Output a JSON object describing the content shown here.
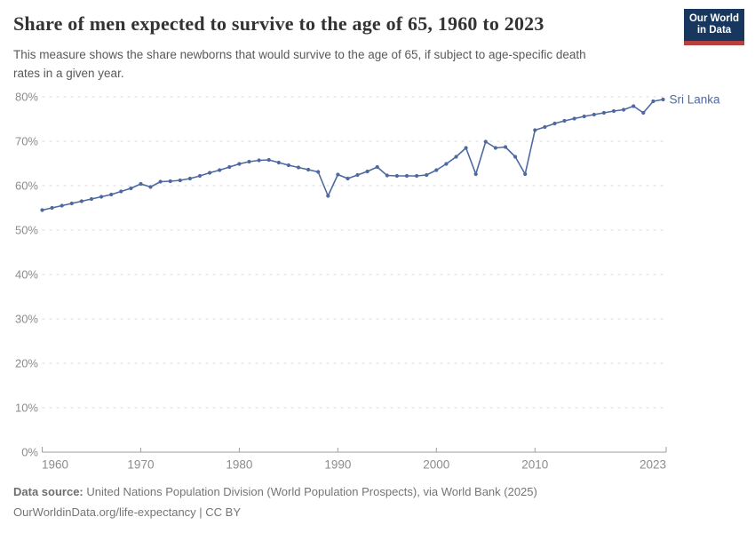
{
  "header": {
    "title": "Share of men expected to survive to the age of 65, 1960 to 2023",
    "logo": {
      "line1": "Our World",
      "line2": "in Data"
    }
  },
  "subtitle": {
    "line1": "This measure shows the share newborns that would survive to the age of 65, if subject to age-specific death",
    "line2": "rates in a given year."
  },
  "colors": {
    "series_blue": "#4d69a0",
    "grid": "#d9d9d9",
    "axis": "#9e9e9e",
    "axis_text": "#8c8c8c",
    "title_text": "#333333",
    "logo_navy": "#18375f",
    "logo_red": "#b5413f"
  },
  "chart_data": {
    "type": "line",
    "title": "Share of men expected to survive to the age of 65, 1960 to 2023",
    "xlabel": "",
    "ylabel": "",
    "xlim": [
      1960,
      2023
    ],
    "ylim": [
      0,
      80
    ],
    "grid": "horizontal-dashed",
    "legend_position": "end-of-line",
    "x_ticks": [
      1960,
      1970,
      1980,
      1990,
      2000,
      2010,
      2023
    ],
    "y_ticks": [
      0,
      10,
      20,
      30,
      40,
      50,
      60,
      70,
      80
    ],
    "y_tick_suffix": "%",
    "series": [
      {
        "name": "Sri Lanka",
        "color": "#4d69a0",
        "start_year": 1960,
        "end_year": 2023,
        "years": [
          1960,
          1961,
          1962,
          1963,
          1964,
          1965,
          1966,
          1967,
          1968,
          1969,
          1970,
          1971,
          1972,
          1973,
          1974,
          1975,
          1976,
          1977,
          1978,
          1979,
          1980,
          1981,
          1982,
          1983,
          1984,
          1985,
          1986,
          1987,
          1988,
          1989,
          1990,
          1991,
          1992,
          1993,
          1994,
          1995,
          1996,
          1997,
          1998,
          1999,
          2000,
          2001,
          2002,
          2003,
          2004,
          2005,
          2006,
          2007,
          2008,
          2009,
          2010,
          2011,
          2012,
          2013,
          2014,
          2015,
          2016,
          2017,
          2018,
          2019,
          2020,
          2021,
          2022,
          2023
        ],
        "values": [
          54.5,
          55.0,
          55.5,
          56.0,
          56.5,
          57.0,
          57.5,
          58.0,
          58.7,
          59.4,
          60.4,
          59.7,
          60.9,
          61.0,
          61.2,
          61.6,
          62.2,
          62.9,
          63.5,
          64.2,
          64.9,
          65.4,
          65.7,
          65.8,
          65.2,
          64.6,
          64.1,
          63.6,
          63.1,
          57.7,
          62.5,
          61.6,
          62.4,
          63.2,
          64.2,
          62.3,
          62.2,
          62.2,
          62.2,
          62.4,
          63.5,
          64.9,
          66.5,
          68.5,
          62.6,
          69.9,
          68.5,
          68.7,
          66.5,
          62.6,
          72.5,
          73.2,
          74.0,
          74.6,
          75.1,
          75.6,
          76.0,
          76.4,
          76.8,
          77.1,
          77.9,
          76.4,
          79.0,
          79.4
        ]
      }
    ]
  },
  "footer": {
    "source_label": "Data source:",
    "source_text": " United Nations Population Division (World Population Prospects), via World Bank (2025)",
    "license_line": "OurWorldinData.org/life-expectancy | CC BY"
  }
}
